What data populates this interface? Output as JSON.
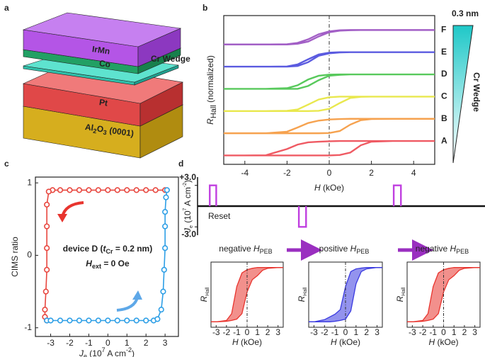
{
  "diagram": {
    "label": "a",
    "layers": [
      {
        "parts": [
          {
            "text": "IrMn"
          }
        ]
      },
      {
        "parts": [
          {
            "text": "Co"
          }
        ]
      },
      {
        "parts": [
          {
            "text": "Cr Wedge"
          }
        ]
      },
      {
        "parts": [
          {
            "text": "Pt"
          }
        ]
      },
      {
        "parts": [
          {
            "text": "Al"
          },
          {
            "text": "2",
            "style": "sub"
          },
          {
            "text": "O"
          },
          {
            "text": "3",
            "style": "sub"
          },
          {
            "text": " (0001)"
          }
        ]
      }
    ]
  },
  "chart_data": [
    {
      "type": "line",
      "label": "b",
      "x": [
        -5,
        -4,
        -3,
        -2,
        -1.5,
        -1,
        -0.5,
        0,
        0.5,
        1,
        1.5,
        2,
        3,
        4,
        5,
        5,
        4,
        3,
        2,
        1.5,
        1,
        0.5,
        0,
        -0.5,
        -1,
        -1.5,
        -2,
        -3,
        -4,
        -5
      ],
      "xlim": [
        -5,
        5
      ],
      "xticks": [
        -4,
        -2,
        0,
        2,
        4
      ],
      "ylim": [
        -0.4,
        6.3
      ],
      "xlabel": {
        "parts": [
          {
            "text": "H",
            "style": "italic"
          },
          {
            "text": " (kOe)"
          }
        ]
      },
      "ylabel": {
        "parts": [
          {
            "text": "R",
            "style": "italic"
          },
          {
            "text": "Hall",
            "style": "sub"
          },
          {
            "text": " (normalized)"
          }
        ]
      },
      "wedge": {
        "top_label": "0.3 nm",
        "label": "Cr Wedge",
        "color": "#1fc8c8"
      },
      "series": [
        {
          "name": "A",
          "color": "#ef5a63",
          "values": [
            0,
            0,
            0,
            0,
            0,
            0,
            0,
            0,
            0.02,
            0.13,
            0.46,
            0.62,
            0.65,
            0.65,
            0.65,
            0.65,
            0.65,
            0.65,
            0.65,
            0.65,
            0.65,
            0.65,
            0.64,
            0.62,
            0.59,
            0.49,
            0.29,
            0.01,
            0,
            0
          ]
        },
        {
          "name": "B",
          "color": "#f6a24f",
          "values": [
            1,
            1,
            1,
            1,
            1,
            1,
            1,
            1.01,
            1.1,
            1.39,
            1.59,
            1.64,
            1.65,
            1.65,
            1.65,
            1.65,
            1.65,
            1.65,
            1.65,
            1.65,
            1.65,
            1.64,
            1.62,
            1.57,
            1.46,
            1.26,
            1.07,
            1,
            1,
            1
          ]
        },
        {
          "name": "C",
          "color": "#e9e84e",
          "values": [
            2,
            2,
            2,
            2,
            2,
            2,
            2.01,
            2.1,
            2.36,
            2.59,
            2.64,
            2.65,
            2.65,
            2.65,
            2.65,
            2.65,
            2.65,
            2.65,
            2.65,
            2.65,
            2.65,
            2.65,
            2.62,
            2.52,
            2.29,
            2.07,
            2.01,
            2,
            2,
            2
          ]
        },
        {
          "name": "D",
          "color": "#58c95c",
          "values": [
            3,
            3,
            3,
            3,
            3,
            3.13,
            3.39,
            3.59,
            3.63,
            3.65,
            3.65,
            3.65,
            3.65,
            3.65,
            3.65,
            3.65,
            3.65,
            3.65,
            3.65,
            3.65,
            3.65,
            3.65,
            3.64,
            3.59,
            3.42,
            3.16,
            3.03,
            3,
            3,
            3
          ]
        },
        {
          "name": "E",
          "color": "#5b5be0",
          "values": [
            4,
            4,
            4,
            4,
            4.03,
            4.2,
            4.49,
            4.6,
            4.64,
            4.65,
            4.65,
            4.65,
            4.65,
            4.65,
            4.65,
            4.65,
            4.65,
            4.65,
            4.65,
            4.65,
            4.65,
            4.65,
            4.63,
            4.55,
            4.33,
            4.1,
            4.01,
            4,
            4,
            4
          ]
        },
        {
          "name": "F",
          "color": "#a25fc6",
          "values": [
            5,
            5,
            5,
            5,
            5.03,
            5.13,
            5.36,
            5.55,
            5.62,
            5.64,
            5.65,
            5.65,
            5.65,
            5.65,
            5.65,
            5.65,
            5.65,
            5.65,
            5.65,
            5.65,
            5.65,
            5.64,
            5.59,
            5.46,
            5.23,
            5.07,
            5.01,
            5,
            5,
            5
          ]
        }
      ]
    },
    {
      "type": "marker-line",
      "label": "c",
      "xlim": [
        -3.8,
        3.7
      ],
      "xticks": [
        -3,
        -2,
        -1,
        0,
        1,
        2,
        3
      ],
      "ylim": [
        -1.12,
        1.08
      ],
      "yticks": [
        -1,
        0,
        1
      ],
      "xlabel": {
        "parts": [
          {
            "text": "J",
            "style": "italic"
          },
          {
            "text": "e",
            "style": "sub"
          },
          {
            "text": " (10"
          },
          {
            "text": "7",
            "style": "sup"
          },
          {
            "text": " A cm"
          },
          {
            "text": "-2",
            "style": "sup"
          },
          {
            "text": ")"
          }
        ]
      },
      "ylabel": {
        "parts": [
          {
            "text": "CIMS ratio"
          }
        ]
      },
      "annotations": [
        {
          "color": "#2fb84a",
          "parts": [
            {
              "text": "device D ("
            },
            {
              "text": "t",
              "style": "italic"
            },
            {
              "text": "Cr",
              "style": "sub"
            },
            {
              "text": " = 0.2 nm)"
            }
          ]
        },
        {
          "color": "#111111",
          "parts": [
            {
              "text": "H",
              "style": "italic"
            },
            {
              "text": "ext",
              "style": "sub"
            },
            {
              "text": " = 0 Oe"
            }
          ]
        }
      ],
      "series": [
        {
          "color": "#e8473f",
          "x": [
            3,
            2.5,
            2,
            1.5,
            1,
            0.5,
            0,
            -0.5,
            -1,
            -1.5,
            -2,
            -2.5,
            -2.9,
            -3.1,
            -3.2,
            -3.2,
            -3.2,
            -3.2,
            -3.25,
            -3.3,
            -3.3,
            -3.2
          ],
          "values": [
            0.9,
            0.9,
            0.9,
            0.9,
            0.9,
            0.9,
            0.9,
            0.9,
            0.9,
            0.9,
            0.9,
            0.9,
            0.9,
            0.88,
            0.7,
            0.4,
            0.1,
            -0.2,
            -0.5,
            -0.75,
            -0.85,
            -0.9
          ]
        },
        {
          "color": "#2e9fe6",
          "x": [
            -3.2,
            -3,
            -2.5,
            -2,
            -1.5,
            -1,
            -0.5,
            0,
            0.5,
            1,
            1.5,
            2,
            2.4,
            2.6,
            2.8,
            2.9,
            2.95,
            3,
            3,
            3,
            3.05,
            3.1
          ],
          "values": [
            -0.9,
            -0.9,
            -0.9,
            -0.9,
            -0.9,
            -0.9,
            -0.9,
            -0.9,
            -0.9,
            -0.9,
            -0.9,
            -0.9,
            -0.9,
            -0.88,
            -0.75,
            -0.5,
            -0.2,
            0.1,
            0.4,
            0.6,
            0.8,
            0.9
          ]
        }
      ]
    },
    {
      "type": "pulse",
      "label": "d",
      "color": "#c03fe0",
      "xlim": [
        0,
        40
      ],
      "ylim": [
        -4.2,
        4.2
      ],
      "yticks": [
        {
          "value": 3,
          "label": "+3.0"
        },
        {
          "value": -3,
          "label": "-3.0"
        }
      ],
      "ylabel": {
        "parts": [
          {
            "text": "J",
            "style": "italic"
          },
          {
            "text": "e",
            "style": "sub"
          },
          {
            "text": " (10"
          },
          {
            "text": "7",
            "style": "sup"
          },
          {
            "text": " A cm"
          },
          {
            "text": "-2",
            "style": "sup"
          },
          {
            "text": ")"
          }
        ]
      },
      "annotation": "Reset",
      "pulses": [
        {
          "x": [
            1.7,
            2.6
          ],
          "value": 3
        },
        {
          "x": [
            14.1,
            15.1
          ],
          "value": -3
        },
        {
          "x": [
            27.3,
            28.3
          ],
          "value": 3
        }
      ]
    },
    {
      "type": "loop",
      "color": "#e8342e",
      "title": {
        "parts": [
          {
            "text": "negative "
          },
          {
            "text": "H",
            "style": "italic"
          },
          {
            "text": "PEB",
            "style": "sub"
          }
        ]
      },
      "xlim": [
        -3.5,
        3.5
      ],
      "xticks": [
        -3,
        -2,
        -1,
        0,
        1,
        2,
        3
      ],
      "ylim": [
        -1.2,
        1.2
      ],
      "xlabel": {
        "parts": [
          {
            "text": "H",
            "style": "italic"
          },
          {
            "text": " (kOe)"
          }
        ]
      },
      "ylabel": {
        "parts": [
          {
            "text": "R",
            "style": "italic"
          },
          {
            "text": "Hall",
            "style": "sub"
          }
        ]
      },
      "x": [
        -3.5,
        -3,
        -2,
        -1.5,
        -1,
        -0.5,
        0,
        0.5,
        1,
        1.5,
        2,
        3,
        3.5
      ],
      "series": [
        {
          "values": [
            -1,
            -1,
            -0.98,
            -0.95,
            -0.9,
            -0.7,
            0.1,
            0.55,
            0.7,
            0.9,
            0.97,
            1,
            1
          ]
        },
        {
          "values": [
            -1,
            -1,
            -0.95,
            -0.7,
            0.3,
            0.8,
            0.92,
            0.97,
            1,
            1,
            1,
            1,
            1
          ]
        }
      ]
    },
    {
      "type": "loop",
      "color": "#3a3ae0",
      "title": {
        "parts": [
          {
            "text": "positive "
          },
          {
            "text": "H",
            "style": "italic"
          },
          {
            "text": "PEB",
            "style": "sub"
          }
        ]
      },
      "xlim": [
        -3.5,
        3.5
      ],
      "xticks": [
        -3,
        -2,
        -1,
        0,
        1,
        2,
        3
      ],
      "ylim": [
        -1.2,
        1.2
      ],
      "xlabel": {
        "parts": [
          {
            "text": "H",
            "style": "italic"
          },
          {
            "text": " (kOe)"
          }
        ]
      },
      "ylabel": {
        "parts": [
          {
            "text": "R",
            "style": "italic"
          },
          {
            "text": "Hall",
            "style": "sub"
          }
        ]
      },
      "x": [
        -3.5,
        -3,
        -2,
        -1.5,
        -1,
        -0.5,
        0,
        0.5,
        1,
        1.5,
        2,
        3,
        3.5
      ],
      "series": [
        {
          "values": [
            -1,
            -1,
            -1,
            -1,
            -0.98,
            -0.95,
            -0.9,
            -0.6,
            0.4,
            0.85,
            0.95,
            1,
            1
          ]
        },
        {
          "values": [
            -1,
            -1,
            -0.92,
            -0.82,
            -0.72,
            -0.55,
            0.3,
            0.85,
            0.95,
            0.98,
            1,
            1,
            1
          ]
        }
      ]
    },
    {
      "type": "loop",
      "color": "#e8342e",
      "title": {
        "parts": [
          {
            "text": "negative "
          },
          {
            "text": "H",
            "style": "italic"
          },
          {
            "text": "PEB",
            "style": "sub"
          }
        ]
      },
      "xlim": [
        -3.5,
        3.5
      ],
      "xticks": [
        -3,
        -2,
        -1,
        0,
        1,
        2,
        3
      ],
      "ylim": [
        -1.2,
        1.2
      ],
      "xlabel": {
        "parts": [
          {
            "text": "H",
            "style": "italic"
          },
          {
            "text": " (kOe)"
          }
        ]
      },
      "ylabel": {
        "parts": [
          {
            "text": "R",
            "style": "italic"
          },
          {
            "text": "Hall",
            "style": "sub"
          }
        ]
      },
      "x": [
        -3.5,
        -3,
        -2,
        -1.5,
        -1,
        -0.5,
        0,
        0.5,
        1,
        1.5,
        2,
        3,
        3.5
      ],
      "series": [
        {
          "values": [
            -1,
            -1,
            -0.98,
            -0.95,
            -0.9,
            -0.7,
            0.1,
            0.55,
            0.7,
            0.9,
            0.97,
            1,
            1
          ]
        },
        {
          "values": [
            -1,
            -1,
            -0.95,
            -0.7,
            0.3,
            0.8,
            0.92,
            0.97,
            1,
            1,
            1,
            1,
            1
          ]
        }
      ]
    }
  ]
}
